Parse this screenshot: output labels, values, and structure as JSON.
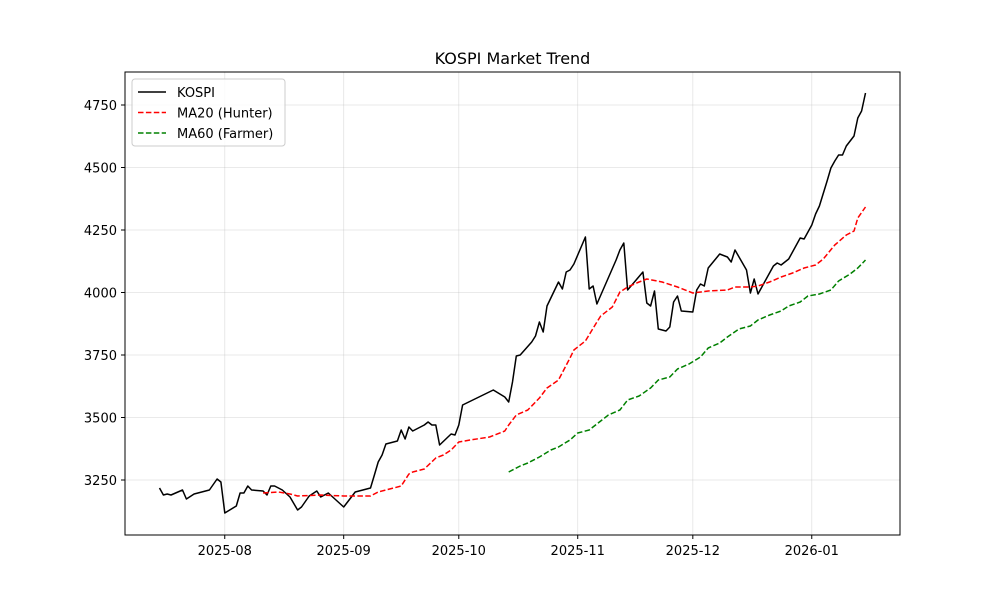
{
  "chart_data": {
    "type": "line",
    "title": "KOSPI Market Trend",
    "xlabel": "",
    "ylabel": "",
    "xlim": [
      "2025-07-06",
      "2026-01-24"
    ],
    "ylim": [
      3030,
      4882
    ],
    "grid": true,
    "legend_position": "top-left",
    "x_ticks": [
      {
        "date": "2025-08-01",
        "label": "2025-08"
      },
      {
        "date": "2025-09-01",
        "label": "2025-09"
      },
      {
        "date": "2025-10-01",
        "label": "2025-10"
      },
      {
        "date": "2025-11-01",
        "label": "2025-11"
      },
      {
        "date": "2025-12-01",
        "label": "2025-12"
      },
      {
        "date": "2026-01-01",
        "label": "2026-01"
      }
    ],
    "y_ticks": [
      3250,
      3500,
      3750,
      4000,
      4250,
      4500,
      4750
    ],
    "series": [
      {
        "name": "KOSPI",
        "color": "#000000",
        "style": "solid",
        "points": [
          [
            "2025-07-15",
            3218
          ],
          [
            "2025-07-16",
            3190
          ],
          [
            "2025-07-17",
            3194
          ],
          [
            "2025-07-18",
            3190
          ],
          [
            "2025-07-21",
            3210
          ],
          [
            "2025-07-22",
            3174
          ],
          [
            "2025-07-24",
            3194
          ],
          [
            "2025-07-28",
            3210
          ],
          [
            "2025-07-30",
            3254
          ],
          [
            "2025-07-31",
            3242
          ],
          [
            "2025-08-01",
            3118
          ],
          [
            "2025-08-04",
            3146
          ],
          [
            "2025-08-05",
            3198
          ],
          [
            "2025-08-06",
            3198
          ],
          [
            "2025-08-07",
            3226
          ],
          [
            "2025-08-08",
            3210
          ],
          [
            "2025-08-11",
            3206
          ],
          [
            "2025-08-12",
            3190
          ],
          [
            "2025-08-13",
            3226
          ],
          [
            "2025-08-14",
            3226
          ],
          [
            "2025-08-16",
            3210
          ],
          [
            "2025-08-18",
            3182
          ],
          [
            "2025-08-20",
            3130
          ],
          [
            "2025-08-21",
            3142
          ],
          [
            "2025-08-23",
            3186
          ],
          [
            "2025-08-25",
            3206
          ],
          [
            "2025-08-26",
            3182
          ],
          [
            "2025-08-28",
            3198
          ],
          [
            "2025-08-30",
            3170
          ],
          [
            "2025-09-01",
            3142
          ],
          [
            "2025-09-03",
            3182
          ],
          [
            "2025-09-04",
            3202
          ],
          [
            "2025-09-08",
            3218
          ],
          [
            "2025-09-09",
            3270
          ],
          [
            "2025-09-10",
            3322
          ],
          [
            "2025-09-11",
            3350
          ],
          [
            "2025-09-12",
            3394
          ],
          [
            "2025-09-15",
            3406
          ],
          [
            "2025-09-16",
            3450
          ],
          [
            "2025-09-17",
            3414
          ],
          [
            "2025-09-18",
            3462
          ],
          [
            "2025-09-19",
            3446
          ],
          [
            "2025-09-22",
            3470
          ],
          [
            "2025-09-23",
            3482
          ],
          [
            "2025-09-24",
            3470
          ],
          [
            "2025-09-25",
            3470
          ],
          [
            "2025-09-26",
            3390
          ],
          [
            "2025-09-29",
            3434
          ],
          [
            "2025-09-30",
            3430
          ],
          [
            "2025-10-01",
            3470
          ],
          [
            "2025-10-02",
            3550
          ],
          [
            "2025-10-10",
            3610
          ],
          [
            "2025-10-13",
            3582
          ],
          [
            "2025-10-14",
            3562
          ],
          [
            "2025-10-15",
            3642
          ],
          [
            "2025-10-16",
            3746
          ],
          [
            "2025-10-17",
            3750
          ],
          [
            "2025-10-20",
            3802
          ],
          [
            "2025-10-21",
            3826
          ],
          [
            "2025-10-22",
            3882
          ],
          [
            "2025-10-23",
            3842
          ],
          [
            "2025-10-24",
            3946
          ],
          [
            "2025-10-27",
            4042
          ],
          [
            "2025-10-28",
            4014
          ],
          [
            "2025-10-29",
            4082
          ],
          [
            "2025-10-30",
            4090
          ],
          [
            "2025-10-31",
            4114
          ],
          [
            "2025-11-03",
            4222
          ],
          [
            "2025-11-04",
            4014
          ],
          [
            "2025-11-05",
            4026
          ],
          [
            "2025-11-06",
            3954
          ],
          [
            "2025-11-11",
            4130
          ],
          [
            "2025-11-12",
            4170
          ],
          [
            "2025-11-13",
            4198
          ],
          [
            "2025-11-14",
            4010
          ],
          [
            "2025-11-18",
            4082
          ],
          [
            "2025-11-19",
            3958
          ],
          [
            "2025-11-20",
            3946
          ],
          [
            "2025-11-21",
            4006
          ],
          [
            "2025-11-22",
            3854
          ],
          [
            "2025-11-24",
            3846
          ],
          [
            "2025-11-25",
            3862
          ],
          [
            "2025-11-26",
            3962
          ],
          [
            "2025-11-27",
            3986
          ],
          [
            "2025-11-28",
            3926
          ],
          [
            "2025-12-01",
            3922
          ],
          [
            "2025-12-02",
            4010
          ],
          [
            "2025-12-03",
            4034
          ],
          [
            "2025-12-04",
            4026
          ],
          [
            "2025-12-05",
            4098
          ],
          [
            "2025-12-08",
            4154
          ],
          [
            "2025-12-10",
            4142
          ],
          [
            "2025-12-11",
            4122
          ],
          [
            "2025-12-12",
            4170
          ],
          [
            "2025-12-15",
            4090
          ],
          [
            "2025-12-16",
            3998
          ],
          [
            "2025-12-17",
            4054
          ],
          [
            "2025-12-18",
            3994
          ],
          [
            "2025-12-22",
            4106
          ],
          [
            "2025-12-23",
            4118
          ],
          [
            "2025-12-24",
            4110
          ],
          [
            "2025-12-26",
            4134
          ],
          [
            "2025-12-29",
            4218
          ],
          [
            "2025-12-30",
            4214
          ],
          [
            "2026-01-01",
            4270
          ],
          [
            "2026-01-02",
            4314
          ],
          [
            "2026-01-03",
            4346
          ],
          [
            "2026-01-05",
            4446
          ],
          [
            "2026-01-06",
            4498
          ],
          [
            "2026-01-07",
            4526
          ],
          [
            "2026-01-08",
            4550
          ],
          [
            "2026-01-09",
            4550
          ],
          [
            "2026-01-10",
            4586
          ],
          [
            "2026-01-12",
            4626
          ],
          [
            "2026-01-13",
            4698
          ],
          [
            "2026-01-14",
            4726
          ],
          [
            "2026-01-15",
            4798
          ]
        ]
      },
      {
        "name": "MA20 (Hunter)",
        "color": "#ff0000",
        "style": "dashed",
        "points": [
          [
            "2025-08-11",
            3198
          ],
          [
            "2025-08-15",
            3202
          ],
          [
            "2025-08-18",
            3194
          ],
          [
            "2025-08-20",
            3186
          ],
          [
            "2025-08-26",
            3190
          ],
          [
            "2025-09-01",
            3186
          ],
          [
            "2025-09-08",
            3186
          ],
          [
            "2025-09-10",
            3202
          ],
          [
            "2025-09-14",
            3218
          ],
          [
            "2025-09-16",
            3226
          ],
          [
            "2025-09-18",
            3274
          ],
          [
            "2025-09-19",
            3282
          ],
          [
            "2025-09-22",
            3294
          ],
          [
            "2025-09-25",
            3338
          ],
          [
            "2025-09-27",
            3350
          ],
          [
            "2025-09-29",
            3370
          ],
          [
            "2025-10-01",
            3402
          ],
          [
            "2025-10-04",
            3410
          ],
          [
            "2025-10-09",
            3422
          ],
          [
            "2025-10-13",
            3446
          ],
          [
            "2025-10-14",
            3470
          ],
          [
            "2025-10-16",
            3510
          ],
          [
            "2025-10-19",
            3530
          ],
          [
            "2025-10-22",
            3578
          ],
          [
            "2025-10-24",
            3618
          ],
          [
            "2025-10-27",
            3650
          ],
          [
            "2025-10-30",
            3738
          ],
          [
            "2025-10-31",
            3770
          ],
          [
            "2025-11-03",
            3806
          ],
          [
            "2025-11-06",
            3882
          ],
          [
            "2025-11-07",
            3906
          ],
          [
            "2025-11-10",
            3942
          ],
          [
            "2025-11-12",
            4002
          ],
          [
            "2025-11-14",
            4022
          ],
          [
            "2025-11-17",
            4042
          ],
          [
            "2025-11-19",
            4054
          ],
          [
            "2025-11-23",
            4042
          ],
          [
            "2025-11-27",
            4022
          ],
          [
            "2025-12-01",
            3998
          ],
          [
            "2025-12-05",
            4006
          ],
          [
            "2025-12-10",
            4010
          ],
          [
            "2025-12-12",
            4022
          ],
          [
            "2025-12-16",
            4022
          ],
          [
            "2025-12-18",
            4026
          ],
          [
            "2025-12-21",
            4042
          ],
          [
            "2025-12-24",
            4062
          ],
          [
            "2025-12-27",
            4078
          ],
          [
            "2025-12-30",
            4098
          ],
          [
            "2026-01-02",
            4110
          ],
          [
            "2026-01-04",
            4134
          ],
          [
            "2026-01-07",
            4190
          ],
          [
            "2026-01-10",
            4230
          ],
          [
            "2026-01-12",
            4246
          ],
          [
            "2026-01-13",
            4298
          ],
          [
            "2026-01-15",
            4342
          ]
        ]
      },
      {
        "name": "MA60 (Farmer)",
        "color": "#008000",
        "style": "dashed",
        "points": [
          [
            "2025-10-14",
            3282
          ],
          [
            "2025-10-17",
            3306
          ],
          [
            "2025-10-19",
            3318
          ],
          [
            "2025-10-22",
            3342
          ],
          [
            "2025-10-25",
            3370
          ],
          [
            "2025-10-27",
            3382
          ],
          [
            "2025-10-30",
            3410
          ],
          [
            "2025-11-01",
            3438
          ],
          [
            "2025-11-04",
            3450
          ],
          [
            "2025-11-07",
            3486
          ],
          [
            "2025-11-09",
            3510
          ],
          [
            "2025-11-12",
            3530
          ],
          [
            "2025-11-14",
            3570
          ],
          [
            "2025-11-17",
            3586
          ],
          [
            "2025-11-20",
            3618
          ],
          [
            "2025-11-22",
            3650
          ],
          [
            "2025-11-25",
            3662
          ],
          [
            "2025-11-27",
            3694
          ],
          [
            "2025-11-30",
            3714
          ],
          [
            "2025-12-03",
            3742
          ],
          [
            "2025-12-05",
            3778
          ],
          [
            "2025-12-08",
            3798
          ],
          [
            "2025-12-10",
            3822
          ],
          [
            "2025-12-13",
            3854
          ],
          [
            "2025-12-16",
            3866
          ],
          [
            "2025-12-18",
            3890
          ],
          [
            "2025-12-21",
            3910
          ],
          [
            "2025-12-24",
            3926
          ],
          [
            "2025-12-26",
            3946
          ],
          [
            "2025-12-29",
            3962
          ],
          [
            "2025-12-31",
            3986
          ],
          [
            "2026-01-03",
            3994
          ],
          [
            "2026-01-06",
            4010
          ],
          [
            "2026-01-08",
            4046
          ],
          [
            "2026-01-11",
            4074
          ],
          [
            "2026-01-13",
            4098
          ],
          [
            "2026-01-15",
            4130
          ]
        ]
      }
    ]
  }
}
